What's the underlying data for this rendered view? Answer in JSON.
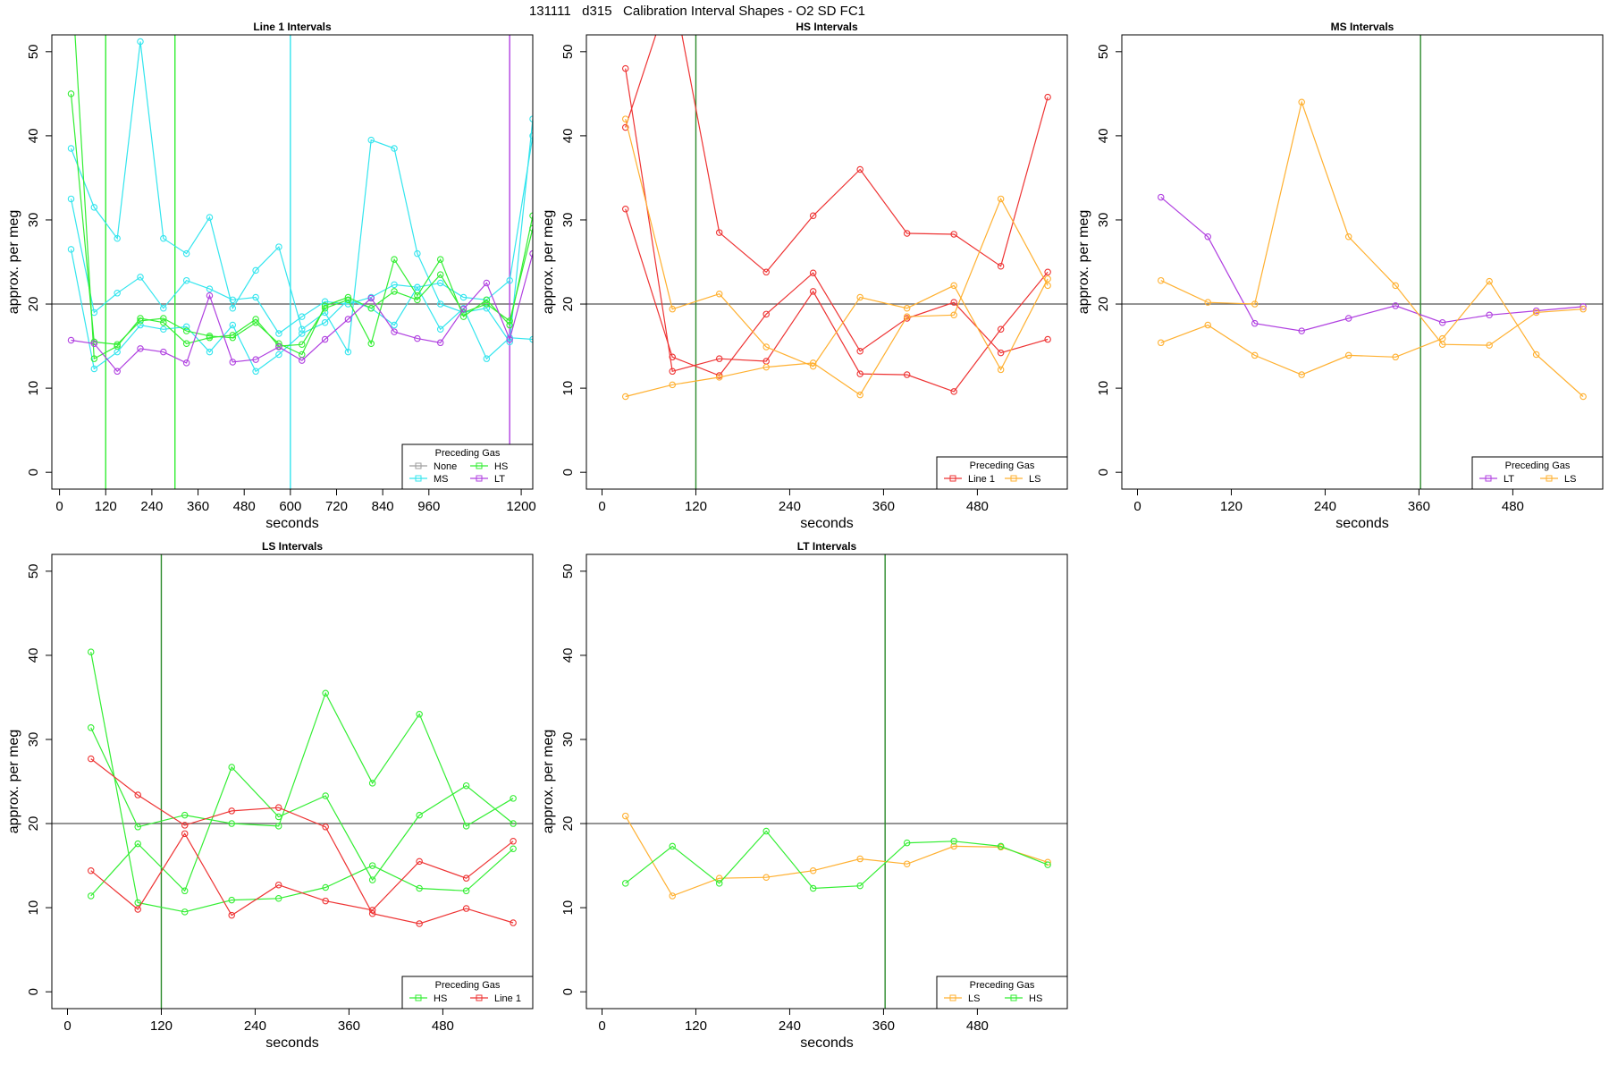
{
  "main_title": "131111   d315   Calibration Interval Shapes - O2 SD FC1",
  "colors": {
    "None": "#9e9e9e",
    "HS": "#33ee33",
    "MS": "#33e5ee",
    "LT": "#b040e0",
    "Line 1": "#ee3333",
    "LS": "#ffb030",
    "reference_line": "#555555",
    "marker_green": "#2c8a2c"
  },
  "chart_data": [
    {
      "type": "line",
      "title": "Line 1 Intervals",
      "xlabel": "seconds",
      "ylabel": "approx. per meg",
      "xlim": [
        -20,
        1230
      ],
      "ylim": [
        -2,
        52
      ],
      "xticks": [
        0,
        120,
        240,
        360,
        480,
        600,
        720,
        840,
        960,
        1200
      ],
      "yticks": [
        0,
        10,
        20,
        30,
        40,
        50
      ],
      "hline": 20,
      "vlines": [
        {
          "x": 120,
          "color": "HS"
        },
        {
          "x": 300,
          "color": "HS"
        },
        {
          "x": 600,
          "color": "MS"
        },
        {
          "x": 1170,
          "color": "LT"
        }
      ],
      "legend": {
        "title": "Preceding Gas",
        "entries": [
          "None",
          "HS",
          "MS",
          "LT"
        ],
        "columns": 2
      },
      "series": [
        {
          "color": "MS",
          "x": [
            30,
            90,
            150,
            210,
            270,
            330,
            390,
            450,
            510,
            570,
            630,
            690,
            750,
            810,
            870,
            930,
            990,
            1050,
            1110,
            1170,
            1230
          ],
          "y": [
            38.5,
            31.5,
            27.8,
            51.2,
            27.8,
            26.0,
            30.3,
            19.5,
            24.0,
            26.8,
            17.0,
            19.0,
            14.3,
            39.5,
            38.5,
            26.0,
            20.0,
            19.0,
            19.5,
            15.5,
            42.0
          ]
        },
        {
          "color": "MS",
          "x": [
            30,
            90,
            150,
            210,
            270,
            330,
            390,
            450,
            510,
            570,
            630,
            690,
            750,
            810,
            870,
            930,
            990,
            1050,
            1110,
            1170,
            1230
          ],
          "y": [
            32.5,
            19.0,
            21.3,
            23.2,
            19.5,
            22.8,
            21.8,
            20.5,
            20.8,
            16.5,
            18.5,
            20.3,
            20.0,
            20.8,
            22.3,
            22.0,
            22.5,
            20.8,
            20.5,
            22.8,
            40.0
          ]
        },
        {
          "color": "MS",
          "x": [
            30,
            90,
            150,
            210,
            270,
            330,
            390,
            450,
            510,
            570,
            630,
            690,
            750,
            810,
            870,
            930,
            990,
            1050,
            1110,
            1170,
            1230
          ],
          "y": [
            26.5,
            12.3,
            14.3,
            17.5,
            17.0,
            17.3,
            14.3,
            17.5,
            12.0,
            14.0,
            16.5,
            17.8,
            20.5,
            19.5,
            17.5,
            22.0,
            17.0,
            19.5,
            13.5,
            16.0,
            15.8
          ]
        },
        {
          "color": "HS",
          "x": [
            30,
            90,
            150,
            210,
            270,
            330,
            390,
            450,
            510,
            570,
            630,
            690,
            750,
            810,
            870,
            930,
            990,
            1050,
            1110,
            1170,
            1230
          ],
          "y": [
            60.0,
            13.5,
            15.0,
            18.3,
            17.8,
            15.3,
            16.0,
            16.3,
            18.2,
            15.0,
            15.2,
            19.5,
            20.5,
            15.3,
            25.3,
            21.0,
            25.3,
            18.5,
            20.5,
            17.5,
            30.5
          ]
        },
        {
          "color": "HS",
          "x": [
            30,
            90,
            150,
            210,
            270,
            330,
            390,
            450,
            510,
            570,
            630,
            690,
            750,
            810,
            870,
            930,
            990,
            1050,
            1110,
            1170,
            1230
          ],
          "y": [
            45.0,
            15.5,
            15.2,
            18.0,
            18.3,
            16.8,
            16.2,
            16.0,
            17.8,
            15.3,
            14.0,
            19.8,
            20.8,
            19.5,
            21.5,
            20.5,
            23.5,
            19.0,
            20.0,
            18.0,
            29.0
          ]
        },
        {
          "color": "LT",
          "x": [
            30,
            90,
            150,
            210,
            270,
            330,
            390,
            450,
            510,
            570,
            630,
            690,
            750,
            810,
            870,
            930,
            990,
            1050,
            1110,
            1170,
            1230
          ],
          "y": [
            15.7,
            15.3,
            12.0,
            14.7,
            14.3,
            13.0,
            21.0,
            13.1,
            13.4,
            14.9,
            13.3,
            15.8,
            18.2,
            20.7,
            16.7,
            15.9,
            15.4,
            19.4,
            22.5,
            15.8,
            26.0
          ]
        }
      ]
    },
    {
      "type": "line",
      "title": "HS Intervals",
      "xlabel": "seconds",
      "ylabel": "approx. per meg",
      "xlim": [
        -20,
        595
      ],
      "ylim": [
        -2,
        52
      ],
      "xticks": [
        0,
        120,
        240,
        360,
        480
      ],
      "yticks": [
        0,
        10,
        20,
        30,
        40,
        50
      ],
      "hline": 20,
      "vlines": [
        {
          "x": 120,
          "color": "marker_green"
        }
      ],
      "legend": {
        "title": "Preceding Gas",
        "entries": [
          "Line 1",
          "LS"
        ],
        "columns": 2
      },
      "series": [
        {
          "color": "Line 1",
          "x": [
            30,
            90,
            150,
            210,
            270,
            330,
            390,
            450,
            510,
            570
          ],
          "y": [
            41.0,
            58.0,
            28.5,
            23.8,
            30.5,
            36.0,
            28.4,
            28.3,
            24.5,
            44.6
          ]
        },
        {
          "color": "Line 1",
          "x": [
            30,
            90,
            150,
            210,
            270,
            330,
            390,
            450,
            510,
            570
          ],
          "y": [
            48.0,
            12.0,
            13.5,
            13.2,
            21.5,
            11.7,
            11.6,
            9.6,
            17.0,
            23.8
          ]
        },
        {
          "color": "Line 1",
          "x": [
            30,
            90,
            150,
            210,
            270,
            330,
            390,
            450,
            510,
            570
          ],
          "y": [
            31.3,
            13.7,
            11.5,
            18.8,
            23.7,
            14.4,
            18.3,
            20.2,
            14.2,
            15.8
          ]
        },
        {
          "color": "LS",
          "x": [
            30,
            90,
            150,
            210,
            270,
            330,
            390,
            450,
            510,
            570
          ],
          "y": [
            42.0,
            19.4,
            21.2,
            14.9,
            12.6,
            20.8,
            19.5,
            22.2,
            12.2,
            23.0
          ]
        },
        {
          "color": "LS",
          "x": [
            30,
            90,
            150,
            210,
            270,
            330,
            390,
            450,
            510,
            570
          ],
          "y": [
            9.0,
            10.4,
            11.3,
            12.5,
            13.0,
            9.2,
            18.5,
            18.7,
            32.5,
            22.2
          ]
        }
      ]
    },
    {
      "type": "line",
      "title": "MS Intervals",
      "xlabel": "seconds",
      "ylabel": "approx. per meg",
      "xlim": [
        -20,
        595
      ],
      "ylim": [
        -2,
        52
      ],
      "xticks": [
        0,
        120,
        240,
        360,
        480
      ],
      "yticks": [
        0,
        10,
        20,
        30,
        40,
        50
      ],
      "hline": 20,
      "vlines": [
        {
          "x": 362,
          "color": "marker_green"
        }
      ],
      "legend": {
        "title": "Preceding Gas",
        "entries": [
          "LT",
          "LS"
        ],
        "columns": 2
      },
      "series": [
        {
          "color": "LT",
          "x": [
            30,
            90,
            150,
            210,
            270,
            330,
            390,
            450,
            510,
            570
          ],
          "y": [
            32.7,
            28.0,
            17.7,
            16.8,
            18.3,
            19.8,
            17.8,
            18.7,
            19.2,
            19.7
          ]
        },
        {
          "color": "LS",
          "x": [
            30,
            90,
            150,
            210,
            270,
            330,
            390,
            450,
            510,
            570
          ],
          "y": [
            22.8,
            20.2,
            20.0,
            44.0,
            28.0,
            22.2,
            15.2,
            15.1,
            19.0,
            19.4
          ]
        },
        {
          "color": "LS",
          "x": [
            30,
            90,
            150,
            210,
            270,
            330,
            390,
            450,
            510,
            570
          ],
          "y": [
            15.4,
            17.5,
            13.9,
            11.6,
            13.9,
            13.7,
            15.9,
            22.7,
            14.0,
            9.0
          ]
        }
      ]
    },
    {
      "type": "line",
      "title": "LS Intervals",
      "xlabel": "seconds",
      "ylabel": "approx. per meg",
      "xlim": [
        -20,
        595
      ],
      "ylim": [
        -2,
        52
      ],
      "xticks": [
        0,
        120,
        240,
        360,
        480
      ],
      "yticks": [
        0,
        10,
        20,
        30,
        40,
        50
      ],
      "hline": 20,
      "vlines": [
        {
          "x": 120,
          "color": "marker_green"
        }
      ],
      "legend": {
        "title": "Preceding Gas",
        "entries": [
          "HS",
          "Line 1"
        ],
        "columns": 2
      },
      "series": [
        {
          "color": "HS",
          "x": [
            30,
            90,
            150,
            210,
            270,
            330,
            390,
            450,
            510,
            570
          ],
          "y": [
            40.4,
            10.6,
            9.5,
            10.9,
            11.1,
            12.4,
            15.0,
            12.3,
            12.0,
            17.0
          ]
        },
        {
          "color": "HS",
          "x": [
            30,
            90,
            150,
            210,
            270,
            330,
            390,
            450,
            510,
            570
          ],
          "y": [
            31.4,
            19.6,
            21.0,
            20.0,
            19.7,
            35.5,
            24.8,
            33.0,
            19.7,
            23.0
          ]
        },
        {
          "color": "HS",
          "x": [
            30,
            90,
            150,
            210,
            270,
            330,
            390,
            450,
            510,
            570
          ],
          "y": [
            11.4,
            17.6,
            12.0,
            26.7,
            20.8,
            23.3,
            13.3,
            21.0,
            24.5,
            20.0
          ]
        },
        {
          "color": "Line 1",
          "x": [
            30,
            90,
            150,
            210,
            270,
            330,
            390,
            450,
            510,
            570
          ],
          "y": [
            27.7,
            23.4,
            19.8,
            21.5,
            21.9,
            19.6,
            9.3,
            8.1,
            9.9,
            8.2
          ]
        },
        {
          "color": "Line 1",
          "x": [
            30,
            90,
            150,
            210,
            270,
            330,
            390,
            450,
            510,
            570
          ],
          "y": [
            14.4,
            9.8,
            18.8,
            9.1,
            12.7,
            10.8,
            9.7,
            15.5,
            13.5,
            17.9
          ]
        }
      ]
    },
    {
      "type": "line",
      "title": "LT Intervals",
      "xlabel": "seconds",
      "ylabel": "approx. per meg",
      "xlim": [
        -20,
        595
      ],
      "ylim": [
        -2,
        52
      ],
      "xticks": [
        0,
        120,
        240,
        360,
        480
      ],
      "yticks": [
        0,
        10,
        20,
        30,
        40,
        50
      ],
      "hline": 20,
      "vlines": [
        {
          "x": 362,
          "color": "marker_green"
        }
      ],
      "legend": {
        "title": "Preceding Gas",
        "entries": [
          "LS",
          "HS"
        ],
        "columns": 2
      },
      "series": [
        {
          "color": "LS",
          "x": [
            30,
            90,
            150,
            210,
            270,
            330,
            390,
            450,
            510,
            570
          ],
          "y": [
            20.9,
            11.4,
            13.5,
            13.6,
            14.4,
            15.8,
            15.2,
            17.3,
            17.2,
            15.4
          ]
        },
        {
          "color": "HS",
          "x": [
            30,
            90,
            150,
            210,
            270,
            330,
            390,
            450,
            510,
            570
          ],
          "y": [
            12.9,
            17.3,
            12.9,
            19.1,
            12.3,
            12.6,
            17.7,
            17.9,
            17.3,
            15.1
          ]
        }
      ]
    }
  ]
}
